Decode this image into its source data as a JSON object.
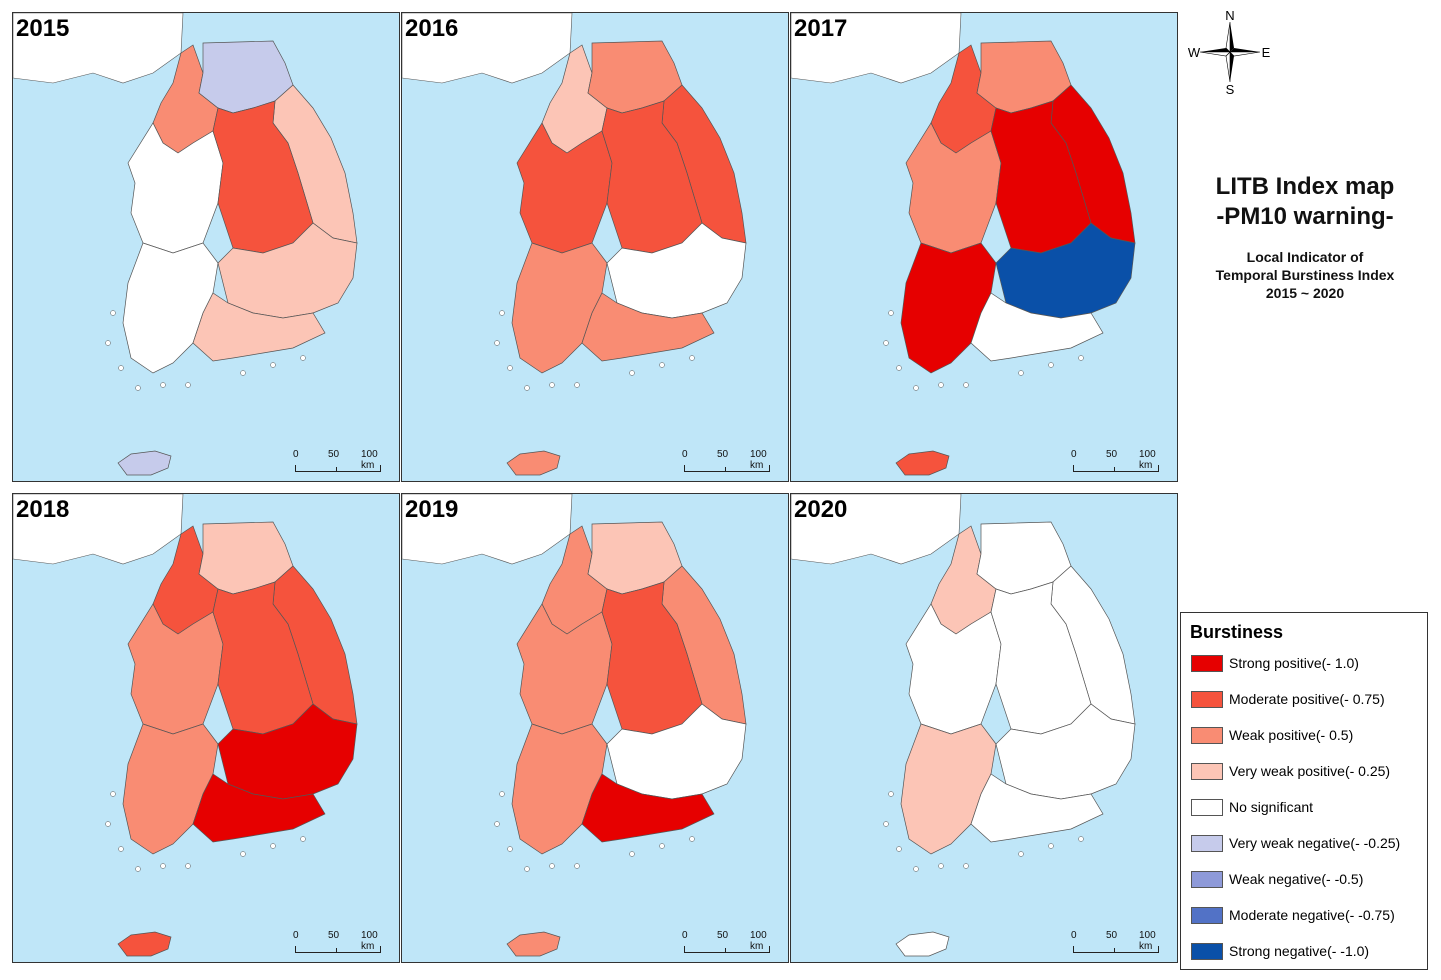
{
  "title": "LITB Index map",
  "title_line2": "-PM10 warning-",
  "subtitle_line1": "Local Indicator of",
  "subtitle_line2": "Temporal Burstiness Index",
  "subtitle_line3": "2015 ~ 2020",
  "compass": {
    "n": "N",
    "s": "S",
    "e": "E",
    "w": "W"
  },
  "scale_bar": {
    "labels": [
      "0",
      "50",
      "100 km"
    ]
  },
  "legend": {
    "title": "Burstiness",
    "items": [
      {
        "label": "Strong positive(- 1.0)",
        "color": "#e60000"
      },
      {
        "label": "Moderate positive(- 0.75)",
        "color": "#f5533d"
      },
      {
        "label": "Weak positive(- 0.5)",
        "color": "#f98c73"
      },
      {
        "label": "Very weak positive(- 0.25)",
        "color": "#fcc5b6"
      },
      {
        "label": "No significant",
        "color": "#ffffff"
      },
      {
        "label": "Very weak negative(- -0.25)",
        "color": "#c6cbeb"
      },
      {
        "label": "Weak negative(- -0.5)",
        "color": "#8e9ad9"
      },
      {
        "label": "Moderate negative(- -0.75)",
        "color": "#5272c6"
      },
      {
        "label": "Strong negative(- -1.0)",
        "color": "#0a50a8"
      }
    ]
  },
  "panels": [
    {
      "year": "2015",
      "regions": {
        "northwest": "weak",
        "northeast": "veryweakneg",
        "gangwon": "veryweak",
        "central_west": "none",
        "central_east": "moderate",
        "southwest": "none",
        "southeast": "veryweak",
        "south_coast": "veryweak",
        "jeju": "veryweakneg"
      }
    },
    {
      "year": "2016",
      "regions": {
        "northwest": "veryweak",
        "northeast": "weak",
        "gangwon": "moderate",
        "central_west": "moderate",
        "central_east": "moderate",
        "southwest": "weak",
        "southeast": "none",
        "south_coast": "weak",
        "jeju": "weak"
      }
    },
    {
      "year": "2017",
      "regions": {
        "northwest": "moderate",
        "northeast": "weak",
        "gangwon": "strong",
        "central_west": "weak",
        "central_east": "strong",
        "southwest": "strong",
        "southeast": "strongneg",
        "south_coast": "none",
        "jeju": "moderate"
      }
    },
    {
      "year": "2018",
      "regions": {
        "northwest": "moderate",
        "northeast": "veryweak",
        "gangwon": "moderate",
        "central_west": "weak",
        "central_east": "moderate",
        "southwest": "weak",
        "southeast": "strong",
        "south_coast": "strong",
        "jeju": "moderate"
      }
    },
    {
      "year": "2019",
      "regions": {
        "northwest": "weak",
        "northeast": "veryweak",
        "gangwon": "weak",
        "central_west": "weak",
        "central_east": "moderate",
        "southwest": "weak",
        "southeast": "none",
        "south_coast": "strong",
        "jeju": "weak"
      }
    },
    {
      "year": "2020",
      "regions": {
        "northwest": "veryweak",
        "northeast": "none",
        "gangwon": "none",
        "central_west": "none",
        "central_east": "none",
        "southwest": "veryweak",
        "southeast": "none",
        "south_coast": "none",
        "jeju": "none"
      }
    }
  ],
  "class_colors": {
    "strong": "#e60000",
    "moderate": "#f5533d",
    "weak": "#f98c73",
    "veryweak": "#fcc5b6",
    "none": "#ffffff",
    "veryweakneg": "#c6cbeb",
    "weakneg": "#8e9ad9",
    "modneg": "#5272c6",
    "strongneg": "#0a50a8"
  }
}
